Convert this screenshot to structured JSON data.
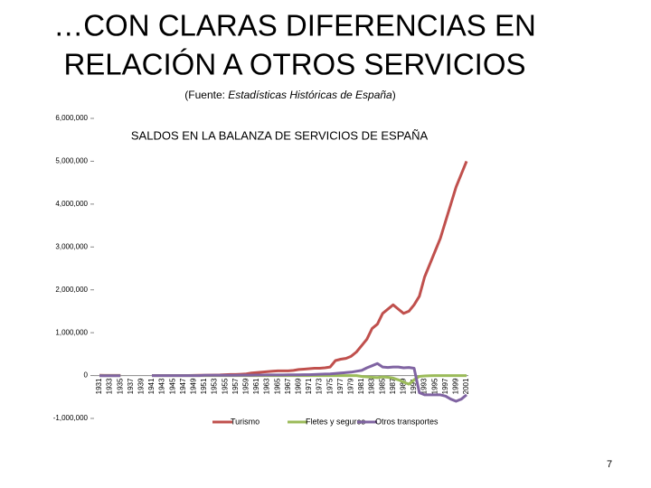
{
  "slide": {
    "title_lines": [
      "…CON CLARAS DIFERENCIAS EN",
      "RELACIÓN A OTROS SERVICIOS"
    ],
    "source": [
      "(Fuente: ",
      "Estadísticas Históricas de España",
      ")"
    ],
    "page_number": "7"
  },
  "chart_data": {
    "type": "line",
    "title": "SALDOS EN LA BALANZA DE SERVICIOS DE ESPAÑA",
    "categories": [
      "1931",
      null,
      "1933",
      null,
      "1935",
      null,
      "1937",
      null,
      "1939",
      null,
      "1941",
      null,
      "1943",
      null,
      "1945",
      null,
      "1947",
      null,
      "1949",
      null,
      "1951",
      null,
      "1953",
      null,
      "1955",
      null,
      "1957",
      null,
      "1959",
      null,
      "1961",
      null,
      "1963",
      null,
      "1965",
      null,
      "1967",
      null,
      "1969",
      null,
      "1971",
      null,
      "1973",
      null,
      "1975",
      null,
      "1977",
      null,
      "1979",
      null,
      "1981",
      null,
      "1983",
      null,
      "1985",
      null,
      "1987",
      null,
      "1989",
      null,
      "1991",
      null,
      "1993",
      null,
      "1995",
      null,
      "1997",
      null,
      "1999",
      null,
      "2001"
    ],
    "series": [
      {
        "name": "Turismo",
        "color": "#c0504d",
        "values": [
          5000,
          4000,
          3000,
          3000,
          3000,
          null,
          null,
          null,
          null,
          null,
          1000,
          1000,
          1000,
          1000,
          1000,
          1000,
          2000,
          2000,
          3000,
          5000,
          8000,
          10000,
          12000,
          15000,
          20000,
          25000,
          25000,
          30000,
          40000,
          60000,
          70000,
          80000,
          90000,
          100000,
          110000,
          110000,
          110000,
          120000,
          140000,
          150000,
          160000,
          170000,
          170000,
          180000,
          200000,
          350000,
          380000,
          400000,
          450000,
          550000,
          700000,
          850000,
          1100000,
          1200000,
          1450000,
          1550000,
          1650000,
          1550000,
          1450000,
          1500000,
          1650000,
          1850000,
          2300000,
          2600000,
          2900000,
          3200000,
          3600000,
          4000000,
          4400000,
          4700000,
          5000000
        ]
      },
      {
        "name": "Fletes y seguros",
        "color": "#9bbb59",
        "values": [
          0,
          0,
          0,
          0,
          0,
          null,
          null,
          null,
          null,
          null,
          0,
          0,
          0,
          0,
          0,
          0,
          0,
          0,
          0,
          0,
          0,
          0,
          0,
          0,
          0,
          0,
          0,
          0,
          0,
          0,
          0,
          0,
          0,
          0,
          0,
          0,
          0,
          0,
          0,
          0,
          0,
          0,
          0,
          0,
          0,
          0,
          0,
          0,
          0,
          0,
          -20000,
          -30000,
          -40000,
          -50000,
          -30000,
          -40000,
          -60000,
          -100000,
          -150000,
          -200000,
          -100000,
          -20000,
          -10000,
          -5000,
          0,
          0,
          0,
          0,
          0,
          0,
          0
        ]
      },
      {
        "name": "Otros transportes",
        "color": "#8064a2",
        "values": [
          -5000,
          -5000,
          -5000,
          -5000,
          -5000,
          null,
          null,
          null,
          null,
          null,
          0,
          0,
          0,
          0,
          0,
          0,
          0,
          0,
          0,
          0,
          5000,
          5000,
          5000,
          5000,
          5000,
          8000,
          8000,
          10000,
          10000,
          10000,
          12000,
          12000,
          14000,
          14000,
          15000,
          15000,
          16000,
          18000,
          18000,
          20000,
          20000,
          25000,
          30000,
          35000,
          40000,
          50000,
          60000,
          70000,
          80000,
          100000,
          120000,
          180000,
          230000,
          280000,
          200000,
          190000,
          200000,
          200000,
          180000,
          190000,
          170000,
          -400000,
          -450000,
          -450000,
          -450000,
          -450000,
          -480000,
          -550000,
          -600000,
          -550000,
          -450000
        ]
      }
    ],
    "ylim": [
      -1000000,
      6000000
    ],
    "yticks": [
      {
        "value": -1000000,
        "label": "-1,000,000"
      },
      0,
      {
        "value": 1000000,
        "label": "1,000,000"
      },
      {
        "value": 2000000,
        "label": "2,000,000"
      },
      {
        "value": 3000000,
        "label": "3,000,000"
      },
      {
        "value": 4000000,
        "label": "4,000,000"
      },
      {
        "value": 5000000,
        "label": "5,000,000"
      },
      {
        "value": 6000000,
        "label": "6,000,000"
      }
    ],
    "grid": false,
    "legend": "bottom"
  }
}
